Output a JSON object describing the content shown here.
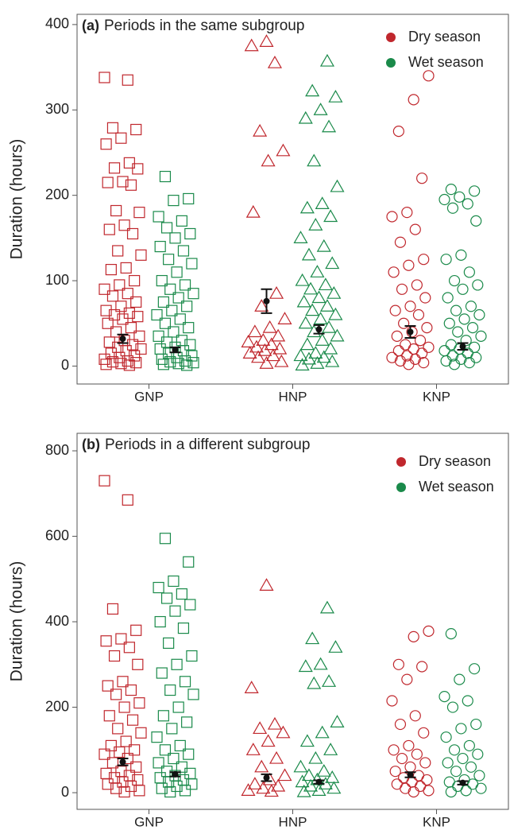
{
  "chart_data": [
    {
      "type": "jitter",
      "label": "(a)",
      "title": "Periods in the same subgroup",
      "y_label": "Duration (hours)",
      "categories": [
        "GNP",
        "HNP",
        "KNP"
      ],
      "markers": [
        "square",
        "triangle",
        "circle"
      ],
      "ylim": [
        -21,
        412
      ],
      "yticks": [
        0,
        100,
        200,
        300,
        400
      ],
      "grid": false,
      "legend": "top-right",
      "series": [
        {
          "name": "Dry season",
          "color": "#c0272d",
          "values": [
            [
              338,
              335,
              279,
              277,
              267,
              260,
              238,
              232,
              231,
              216,
              215,
              212,
              182,
              180,
              165,
              160,
              155,
              135,
              130,
              115,
              113,
              100,
              95,
              90,
              85,
              82,
              75,
              70,
              65,
              62,
              60,
              58,
              55,
              50,
              45,
              40,
              35,
              30,
              28,
              25,
              22,
              20,
              18,
              15,
              12,
              10,
              8,
              6,
              5,
              4,
              3,
              2,
              1
            ],
            [
              380,
              375,
              355,
              275,
              252,
              240,
              180,
              85,
              70,
              55,
              45,
              40,
              35,
              30,
              28,
              25,
              22,
              20,
              18,
              15,
              12,
              10,
              5,
              3
            ],
            [
              340,
              312,
              275,
              220,
              180,
              175,
              160,
              145,
              125,
              118,
              110,
              95,
              90,
              80,
              70,
              65,
              60,
              50,
              45,
              40,
              35,
              30,
              25,
              22,
              20,
              18,
              15,
              12,
              10,
              8,
              6,
              4,
              2
            ]
          ],
          "means": [
            32,
            76,
            40
          ],
          "errors": [
            5,
            14,
            7
          ]
        },
        {
          "name": "Wet season",
          "color": "#1a8a4a",
          "values": [
            [
              222,
              196,
              194,
              175,
              170,
              162,
              155,
              150,
              140,
              135,
              125,
              120,
              110,
              100,
              95,
              90,
              85,
              80,
              75,
              70,
              65,
              60,
              55,
              50,
              45,
              40,
              35,
              30,
              28,
              25,
              22,
              20,
              18,
              15,
              12,
              10,
              8,
              6,
              5,
              4,
              3,
              2,
              1
            ],
            [
              357,
              322,
              315,
              300,
              290,
              280,
              240,
              210,
              190,
              185,
              175,
              165,
              150,
              140,
              130,
              120,
              110,
              100,
              95,
              90,
              85,
              80,
              75,
              70,
              65,
              60,
              55,
              50,
              45,
              40,
              35,
              30,
              25,
              20,
              15,
              12,
              10,
              8,
              5,
              3,
              1
            ],
            [
              207,
              205,
              198,
              195,
              190,
              185,
              170,
              130,
              125,
              110,
              100,
              95,
              90,
              80,
              70,
              65,
              60,
              55,
              50,
              45,
              40,
              35,
              30,
              25,
              22,
              20,
              18,
              15,
              12,
              10,
              8,
              6,
              4,
              2
            ]
          ],
          "means": [
            19,
            43,
            23
          ],
          "errors": [
            3,
            5,
            4
          ]
        }
      ]
    },
    {
      "type": "jitter",
      "label": "(b)",
      "title": "Periods in a different subgroup",
      "y_label": "Duration (hours)",
      "categories": [
        "GNP",
        "HNP",
        "KNP"
      ],
      "markers": [
        "square",
        "triangle",
        "circle"
      ],
      "ylim": [
        -39,
        841
      ],
      "yticks": [
        0,
        200,
        400,
        600,
        800
      ],
      "grid": false,
      "legend": "top-right",
      "series": [
        {
          "name": "Dry season",
          "color": "#c0272d",
          "values": [
            [
              730,
              685,
              430,
              380,
              360,
              355,
              340,
              320,
              300,
              260,
              250,
              240,
              230,
              210,
              200,
              180,
              170,
              150,
              140,
              120,
              110,
              100,
              95,
              90,
              80,
              70,
              60,
              50,
              45,
              40,
              35,
              30,
              25,
              20,
              15,
              10,
              5,
              2
            ],
            [
              485,
              245,
              160,
              150,
              140,
              120,
              100,
              80,
              60,
              40,
              30,
              20,
              15,
              10,
              5,
              3
            ],
            [
              378,
              365,
              300,
              295,
              265,
              215,
              180,
              160,
              140,
              110,
              100,
              90,
              80,
              70,
              60,
              50,
              40,
              35,
              30,
              25,
              20,
              15,
              10,
              5,
              2
            ]
          ],
          "means": [
            72,
            35,
            42
          ],
          "errors": [
            8,
            8,
            6
          ]
        },
        {
          "name": "Wet season",
          "color": "#1a8a4a",
          "values": [
            [
              595,
              540,
              495,
              480,
              465,
              455,
              440,
              425,
              400,
              385,
              350,
              320,
              300,
              280,
              260,
              240,
              230,
              200,
              180,
              165,
              150,
              130,
              110,
              100,
              90,
              80,
              70,
              60,
              50,
              45,
              40,
              35,
              30,
              25,
              20,
              15,
              10,
              5,
              2
            ],
            [
              432,
              360,
              340,
              300,
              295,
              260,
              255,
              165,
              140,
              120,
              100,
              80,
              60,
              50,
              40,
              35,
              30,
              25,
              20,
              15,
              10,
              5,
              2
            ],
            [
              372,
              290,
              265,
              225,
              215,
              200,
              160,
              150,
              130,
              110,
              100,
              90,
              80,
              70,
              60,
              50,
              40,
              30,
              25,
              20,
              15,
              10,
              5,
              2
            ]
          ],
          "means": [
            43,
            25,
            23
          ],
          "errors": [
            5,
            4,
            4
          ]
        }
      ]
    }
  ]
}
